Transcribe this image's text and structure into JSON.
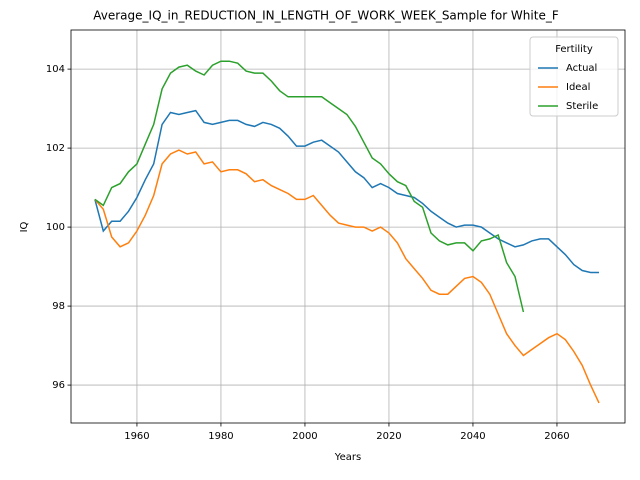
{
  "chart_data": {
    "type": "line",
    "title": "Average_IQ_in_REDUCTION_IN_LENGTH_OF_WORK_WEEK_Sample for White_F",
    "xlabel": "Years",
    "ylabel": "IQ",
    "x": [
      1950,
      1952,
      1954,
      1956,
      1958,
      1960,
      1962,
      1964,
      1966,
      1968,
      1970,
      1972,
      1974,
      1976,
      1978,
      1980,
      1982,
      1984,
      1986,
      1988,
      1990,
      1992,
      1994,
      1996,
      1998,
      2000,
      2002,
      2004,
      2006,
      2008,
      2010,
      2012,
      2014,
      2016,
      2018,
      2020,
      2022,
      2024,
      2026,
      2028,
      2030,
      2032,
      2034,
      2036,
      2038,
      2040,
      2042,
      2044,
      2046,
      2048,
      2050,
      2052,
      2054,
      2056,
      2058,
      2060,
      2062,
      2064,
      2066,
      2068,
      2070
    ],
    "series": [
      {
        "name": "Actual",
        "color": "#1f77b4",
        "values": [
          100.7,
          99.9,
          100.15,
          100.15,
          100.4,
          100.75,
          101.2,
          101.6,
          102.6,
          102.9,
          102.85,
          102.9,
          102.95,
          102.65,
          102.6,
          102.65,
          102.7,
          102.7,
          102.6,
          102.55,
          102.65,
          102.6,
          102.5,
          102.3,
          102.05,
          102.05,
          102.15,
          102.2,
          102.05,
          101.9,
          101.65,
          101.4,
          101.25,
          101.0,
          101.1,
          101.0,
          100.85,
          100.8,
          100.75,
          100.6,
          100.4,
          100.25,
          100.1,
          100.0,
          100.05,
          100.05,
          100.0,
          99.85,
          99.7,
          99.6,
          99.5,
          99.55,
          99.65,
          99.7,
          99.7,
          99.5,
          99.3,
          99.05,
          98.9,
          98.85,
          98.85
        ]
      },
      {
        "name": "Ideal",
        "color": "#ff7f0e",
        "values": [
          100.7,
          100.45,
          99.75,
          99.5,
          99.6,
          99.9,
          100.3,
          100.8,
          101.6,
          101.85,
          101.95,
          101.85,
          101.9,
          101.6,
          101.65,
          101.4,
          101.45,
          101.45,
          101.35,
          101.15,
          101.2,
          101.05,
          100.95,
          100.85,
          100.7,
          100.7,
          100.8,
          100.55,
          100.3,
          100.1,
          100.05,
          100.0,
          100.0,
          99.9,
          100.0,
          99.85,
          99.6,
          99.2,
          98.95,
          98.7,
          98.4,
          98.3,
          98.3,
          98.5,
          98.7,
          98.75,
          98.6,
          98.3,
          97.8,
          97.3,
          97.0,
          96.75,
          96.9,
          97.05,
          97.2,
          97.3,
          97.15,
          96.85,
          96.5,
          96.0,
          95.55
        ]
      },
      {
        "name": "Sterile",
        "color": "#2ca02c",
        "values": [
          100.7,
          100.55,
          101.0,
          101.1,
          101.4,
          101.6,
          102.1,
          102.6,
          103.5,
          103.9,
          104.05,
          104.1,
          103.95,
          103.85,
          104.1,
          104.2,
          104.2,
          104.15,
          103.95,
          103.9,
          103.9,
          103.7,
          103.45,
          103.3,
          103.3,
          103.3,
          103.3,
          103.3,
          103.15,
          103.0,
          102.85,
          102.55,
          102.15,
          101.75,
          101.6,
          101.35,
          101.15,
          101.05,
          100.65,
          100.5,
          99.85,
          99.65,
          99.55,
          99.6,
          99.6,
          99.4,
          99.65,
          99.7,
          99.8,
          99.1,
          98.75,
          97.85,
          null,
          null,
          null,
          null,
          null,
          null,
          null,
          null,
          null
        ]
      }
    ],
    "xlim": [
      1944.3,
      2076.2
    ],
    "xticks": [
      1960,
      1980,
      2000,
      2020,
      2040,
      2060
    ],
    "ylim": [
      95.04,
      104.99
    ],
    "yticks": [
      96,
      98,
      100,
      102,
      104
    ],
    "grid": true,
    "legend_title": "Fertility",
    "legend_loc": "upper right"
  }
}
